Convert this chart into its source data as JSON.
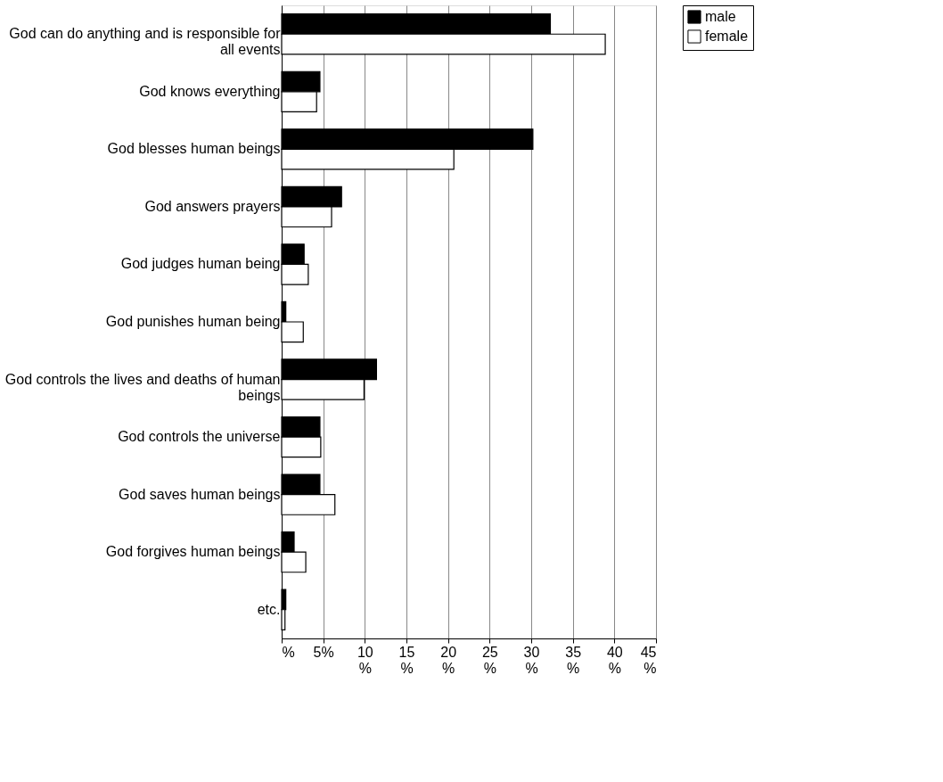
{
  "chart_data": {
    "type": "bar",
    "orientation": "horizontal",
    "categories": [
      "God can do anything and is responsible for all events",
      "God knows everything",
      "God blesses human beings",
      "God answers prayers",
      "God judges human being",
      "God punishes human being",
      "God controls the lives and deaths of human beings",
      "God controls the universe",
      "God saves human beings",
      "God forgives human beings",
      "etc."
    ],
    "series": [
      {
        "name": "male",
        "color": "#000000",
        "values": [
          32.3,
          4.6,
          30.2,
          7.2,
          2.7,
          0.5,
          11.4,
          4.6,
          4.6,
          1.5,
          0.5
        ]
      },
      {
        "name": "female",
        "color": "#ffffff",
        "values": [
          38.9,
          4.2,
          20.7,
          6.0,
          3.2,
          2.6,
          9.9,
          4.7,
          6.4,
          2.9,
          0.4
        ]
      }
    ],
    "xlim": [
      0,
      45
    ],
    "xticks": [
      {
        "value": 0,
        "label": "%"
      },
      {
        "value": 5,
        "label": "5%"
      },
      {
        "value": 10,
        "label": "10\n%"
      },
      {
        "value": 15,
        "label": "15\n%"
      },
      {
        "value": 20,
        "label": "20\n%"
      },
      {
        "value": 25,
        "label": "25\n%"
      },
      {
        "value": 30,
        "label": "30\n%"
      },
      {
        "value": 35,
        "label": "35\n%"
      },
      {
        "value": 40,
        "label": "40\n%"
      },
      {
        "value": 45,
        "label": "45\n%"
      }
    ],
    "grid": "x",
    "legend": "right"
  }
}
